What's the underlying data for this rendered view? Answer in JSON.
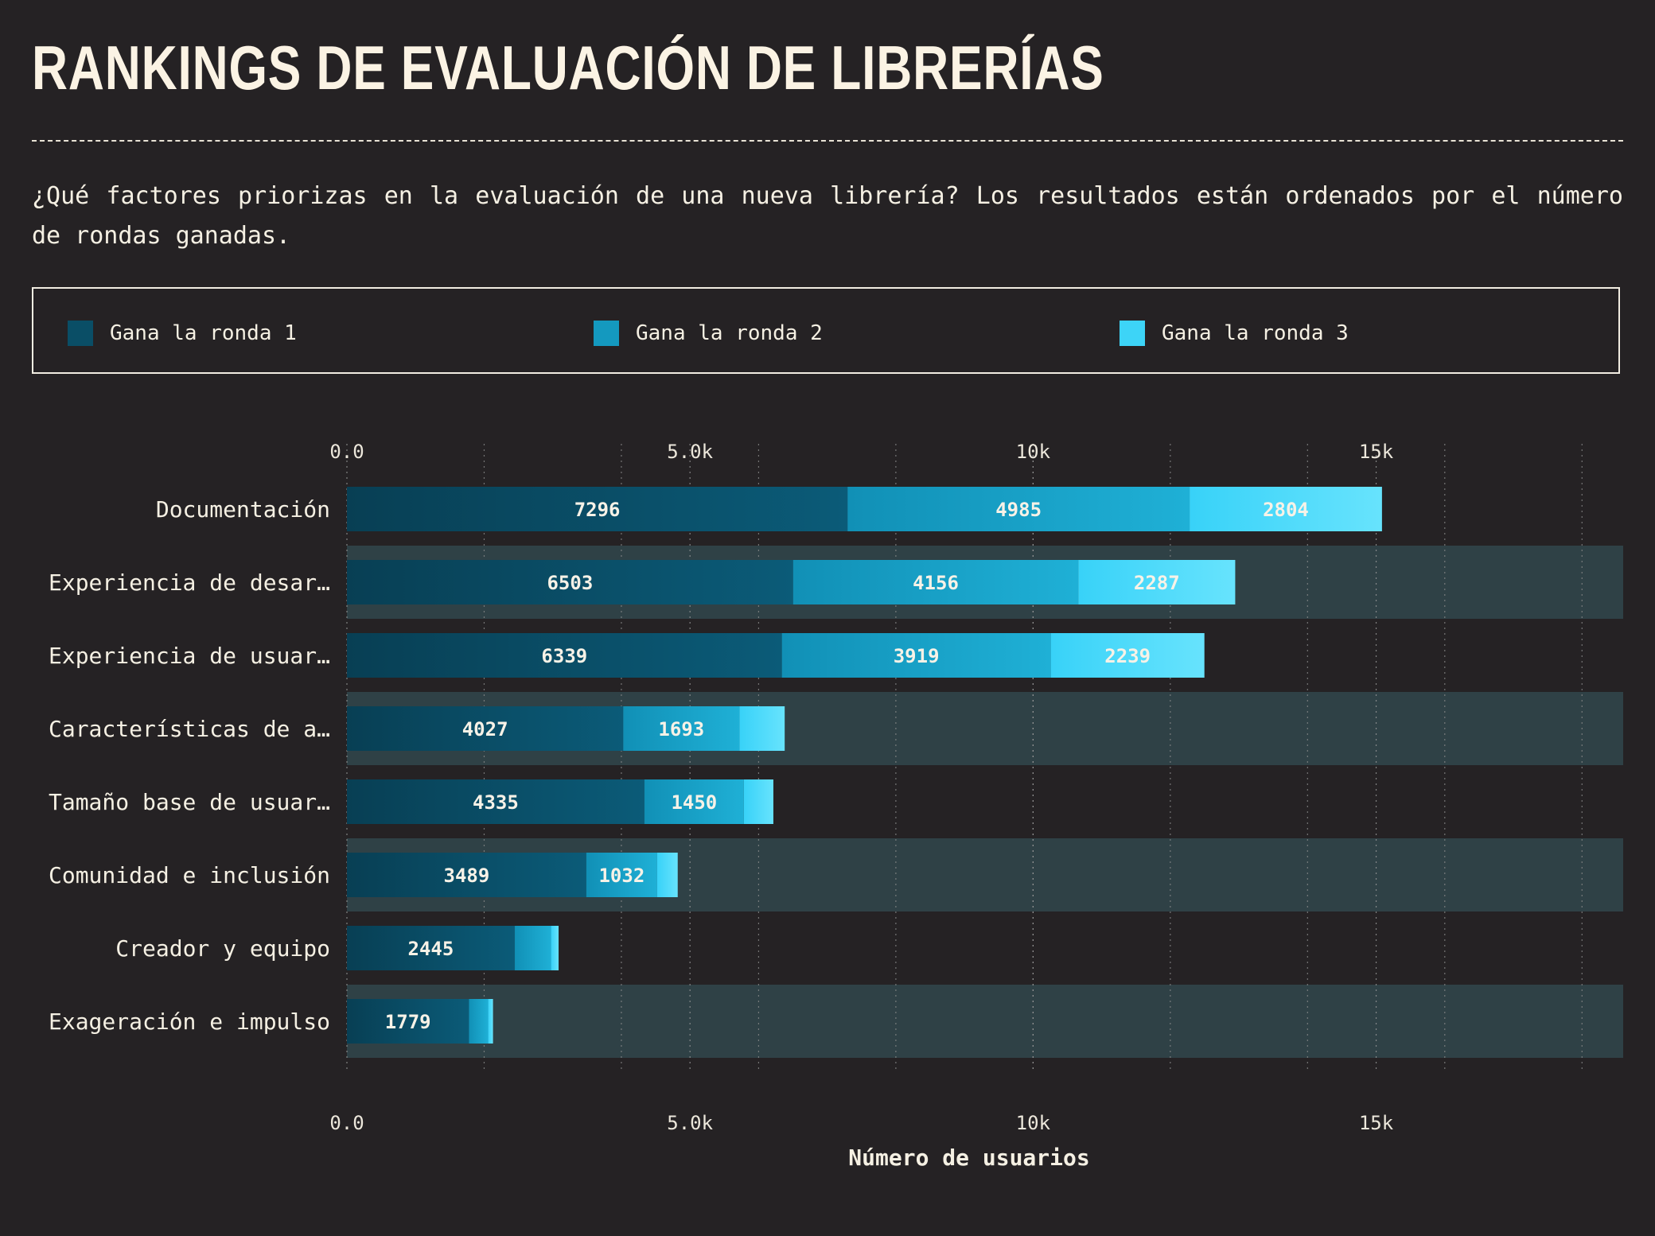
{
  "title": "RANKINGS DE EVALUACIÓN DE LIBRERÍAS",
  "subtitle": "¿Qué factores priorizas en la evaluación de una nueva librería? Los resultados están ordenados por el número de rondas ganadas.",
  "legend": [
    {
      "label": "Gana la ronda 1",
      "color": "#0a4e66"
    },
    {
      "label": "Gana la ronda 2",
      "color": "#1499bf"
    },
    {
      "label": "Gana la ronda 3",
      "color": "#3dd4f7"
    }
  ],
  "colors": {
    "background": "#252224",
    "stripe": "#2f4146",
    "round1": "#0a4e66",
    "round2": "#1499bf",
    "round3": "#3dd4f7",
    "text": "#f5f0e3"
  },
  "chart_data": {
    "type": "bar",
    "orientation": "horizontal",
    "stacked": true,
    "categories": [
      "Documentación",
      "Experiencia de desar…",
      "Experiencia de usuar…",
      "Características de a…",
      "Tamaño base de usuar…",
      "Comunidad e inclusión",
      "Creador y equipo",
      "Exageración e impulso"
    ],
    "series": [
      {
        "name": "Gana la ronda 1",
        "values": [
          7296,
          6503,
          6339,
          4027,
          4335,
          3489,
          2445,
          1779
        ]
      },
      {
        "name": "Gana la ronda 2",
        "values": [
          4985,
          4156,
          3919,
          1693,
          1450,
          1032,
          530,
          280
        ]
      },
      {
        "name": "Gana la ronda 3",
        "values": [
          2804,
          2287,
          2239,
          660,
          430,
          300,
          110,
          70
        ]
      }
    ],
    "data_labels": [
      [
        "7296",
        "4985",
        "2804"
      ],
      [
        "6503",
        "4156",
        "2287"
      ],
      [
        "6339",
        "3919",
        "2239"
      ],
      [
        "4027",
        "1693",
        ""
      ],
      [
        "4335",
        "1450",
        ""
      ],
      [
        "3489",
        "1032",
        ""
      ],
      [
        "2445",
        "",
        ""
      ],
      [
        "1779",
        "",
        ""
      ]
    ],
    "xlabel": "Número de usuarios",
    "ylabel": "",
    "xlim": [
      0,
      18600
    ],
    "xticks": [
      0,
      5000,
      10000,
      15000
    ],
    "xtick_labels": [
      "0.0",
      "5.0k",
      "10k",
      "15k"
    ],
    "minor_grid_step": 2000,
    "grid": true,
    "legend_position": "top",
    "alternating_row_stripes": true
  }
}
